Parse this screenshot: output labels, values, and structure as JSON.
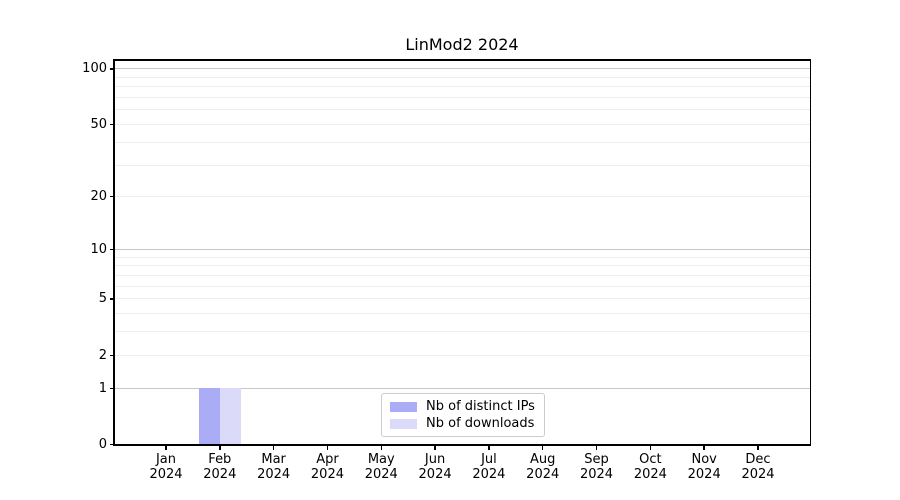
{
  "chart_data": {
    "type": "bar",
    "title": "LinMod2 2024",
    "categories": [
      "Jan 2024",
      "Feb 2024",
      "Mar 2024",
      "Apr 2024",
      "May 2024",
      "Jun 2024",
      "Jul 2024",
      "Aug 2024",
      "Sep 2024",
      "Oct 2024",
      "Nov 2024",
      "Dec 2024"
    ],
    "x_tick_labels": [
      [
        "Jan",
        "2024"
      ],
      [
        "Feb",
        "2024"
      ],
      [
        "Mar",
        "2024"
      ],
      [
        "Apr",
        "2024"
      ],
      [
        "May",
        "2024"
      ],
      [
        "Jun",
        "2024"
      ],
      [
        "Jul",
        "2024"
      ],
      [
        "Aug",
        "2024"
      ],
      [
        "Sep",
        "2024"
      ],
      [
        "Oct",
        "2024"
      ],
      [
        "Nov",
        "2024"
      ],
      [
        "Dec",
        "2024"
      ]
    ],
    "series": [
      {
        "name": "Nb of distinct IPs",
        "color": "#abacf6",
        "values": [
          0,
          1,
          0,
          0,
          0,
          0,
          0,
          0,
          0,
          0,
          0,
          0
        ]
      },
      {
        "name": "Nb of downloads",
        "color": "#dbdbf9",
        "values": [
          0,
          1,
          0,
          0,
          0,
          0,
          0,
          0,
          0,
          0,
          0,
          0
        ]
      }
    ],
    "yscale": "log1p",
    "ylim": [
      0,
      113
    ],
    "y_ticks": [
      0,
      1,
      2,
      5,
      10,
      20,
      50,
      100
    ],
    "grid_major_values": [
      1,
      10,
      100
    ],
    "grid_minor_values": [
      2,
      3,
      4,
      5,
      6,
      7,
      8,
      9,
      20,
      30,
      40,
      50,
      60,
      70,
      80,
      90
    ],
    "grid": "both",
    "legend_position": "lower center",
    "legend_entries": [
      "Nb of distinct IPs",
      "Nb of downloads"
    ]
  },
  "colors": {
    "background": "#ffffff",
    "spine": "#000000",
    "grid_major": "#c6c6c6",
    "grid_minor": "#ededed",
    "text": "#000000",
    "legend_border": "#cccccc"
  }
}
